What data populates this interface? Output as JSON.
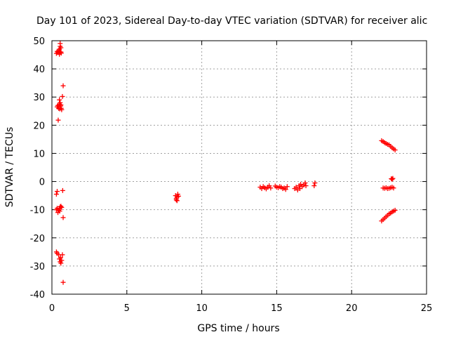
{
  "chart_data": {
    "type": "scatter",
    "title": "Day 101 of 2023, Sidereal Day-to-day VTEC variation (SDTVAR) for receiver alic",
    "xlabel": "GPS time / hours",
    "ylabel": "SDTVAR / TECUs",
    "xlim": [
      0,
      25
    ],
    "ylim": [
      -40,
      50
    ],
    "xticks": [
      0,
      5,
      10,
      15,
      20,
      25
    ],
    "xtick_labels": [
      "0",
      "5",
      "10",
      "15",
      "20",
      "25"
    ],
    "yticks": [
      -40,
      -30,
      -20,
      -10,
      0,
      10,
      20,
      30,
      40,
      50
    ],
    "ytick_labels": [
      "-40",
      "-30",
      "-20",
      "-10",
      "0",
      "10",
      "20",
      "30",
      "40",
      "50"
    ],
    "grid": true,
    "marker": "plus",
    "color": "#ff0000",
    "series": [
      {
        "name": "SDTVAR",
        "points": [
          [
            0.3,
            45.5
          ],
          [
            0.35,
            46.2
          ],
          [
            0.4,
            45.8
          ],
          [
            0.45,
            46.5
          ],
          [
            0.5,
            47.0
          ],
          [
            0.5,
            45.2
          ],
          [
            0.55,
            46.0
          ],
          [
            0.55,
            48.0
          ],
          [
            0.55,
            49.0
          ],
          [
            0.6,
            47.5
          ],
          [
            0.6,
            46.0
          ],
          [
            0.62,
            45.6
          ],
          [
            0.35,
            26.5
          ],
          [
            0.4,
            27.0
          ],
          [
            0.45,
            26.0
          ],
          [
            0.5,
            27.5
          ],
          [
            0.52,
            25.8
          ],
          [
            0.55,
            28.0
          ],
          [
            0.58,
            26.8
          ],
          [
            0.6,
            27.2
          ],
          [
            0.62,
            26.0
          ],
          [
            0.65,
            25.5
          ],
          [
            0.5,
            29.0
          ],
          [
            0.7,
            30.2
          ],
          [
            0.75,
            34.0
          ],
          [
            0.42,
            21.8
          ],
          [
            0.3,
            -4.5
          ],
          [
            0.35,
            -3.5
          ],
          [
            0.72,
            -3.2
          ],
          [
            0.3,
            -10.0
          ],
          [
            0.35,
            -9.5
          ],
          [
            0.4,
            -11.0
          ],
          [
            0.45,
            -10.2
          ],
          [
            0.5,
            -9.8
          ],
          [
            0.55,
            -9.0
          ],
          [
            0.6,
            -8.8
          ],
          [
            0.65,
            -9.2
          ],
          [
            0.52,
            -10.5
          ],
          [
            0.75,
            -12.8
          ],
          [
            0.3,
            -25.0
          ],
          [
            0.35,
            -25.5
          ],
          [
            0.45,
            -26.0
          ],
          [
            0.5,
            -27.5
          ],
          [
            0.55,
            -28.5
          ],
          [
            0.6,
            -29.0
          ],
          [
            0.58,
            -27.0
          ],
          [
            0.65,
            -28.0
          ],
          [
            0.7,
            -26.0
          ],
          [
            0.75,
            -35.8
          ],
          [
            8.25,
            -5.0
          ],
          [
            8.3,
            -6.0
          ],
          [
            8.35,
            -5.5
          ],
          [
            8.4,
            -4.5
          ],
          [
            8.3,
            -6.5
          ],
          [
            8.45,
            -5.2
          ],
          [
            8.35,
            -6.8
          ],
          [
            13.9,
            -2.0
          ],
          [
            14.0,
            -2.5
          ],
          [
            14.1,
            -1.8
          ],
          [
            14.2,
            -2.2
          ],
          [
            14.3,
            -2.6
          ],
          [
            14.4,
            -2.0
          ],
          [
            14.5,
            -1.5
          ],
          [
            14.6,
            -2.3
          ],
          [
            14.9,
            -1.6
          ],
          [
            15.0,
            -2.0
          ],
          [
            15.1,
            -2.2
          ],
          [
            15.2,
            -1.8
          ],
          [
            15.3,
            -2.0
          ],
          [
            15.4,
            -2.5
          ],
          [
            15.5,
            -2.3
          ],
          [
            15.6,
            -2.8
          ],
          [
            15.7,
            -1.8
          ],
          [
            16.2,
            -2.5
          ],
          [
            16.3,
            -2.0
          ],
          [
            16.4,
            -3.0
          ],
          [
            16.5,
            -1.5
          ],
          [
            16.55,
            -2.5
          ],
          [
            16.6,
            -1.0
          ],
          [
            16.7,
            -1.8
          ],
          [
            16.8,
            -1.2
          ],
          [
            16.9,
            -0.5
          ],
          [
            16.95,
            -1.5
          ],
          [
            17.5,
            -1.5
          ],
          [
            17.55,
            -0.5
          ],
          [
            22.0,
            14.5
          ],
          [
            22.1,
            14.2
          ],
          [
            22.2,
            13.8
          ],
          [
            22.3,
            13.5
          ],
          [
            22.4,
            13.2
          ],
          [
            22.5,
            13.0
          ],
          [
            22.6,
            12.5
          ],
          [
            22.7,
            12.0
          ],
          [
            22.8,
            11.6
          ],
          [
            22.9,
            11.2
          ],
          [
            22.65,
            1.0
          ],
          [
            22.7,
            0.8
          ],
          [
            22.75,
            1.1
          ],
          [
            22.1,
            -2.3
          ],
          [
            22.2,
            -2.4
          ],
          [
            22.3,
            -2.2
          ],
          [
            22.4,
            -2.5
          ],
          [
            22.5,
            -2.4
          ],
          [
            22.6,
            -2.2
          ],
          [
            22.7,
            -2.0
          ],
          [
            22.8,
            -2.3
          ],
          [
            22.0,
            -14.0
          ],
          [
            22.1,
            -13.5
          ],
          [
            22.2,
            -13.0
          ],
          [
            22.3,
            -12.5
          ],
          [
            22.4,
            -12.0
          ],
          [
            22.5,
            -11.5
          ],
          [
            22.6,
            -11.2
          ],
          [
            22.7,
            -10.8
          ],
          [
            22.8,
            -10.5
          ],
          [
            22.9,
            -10.2
          ]
        ]
      }
    ]
  }
}
